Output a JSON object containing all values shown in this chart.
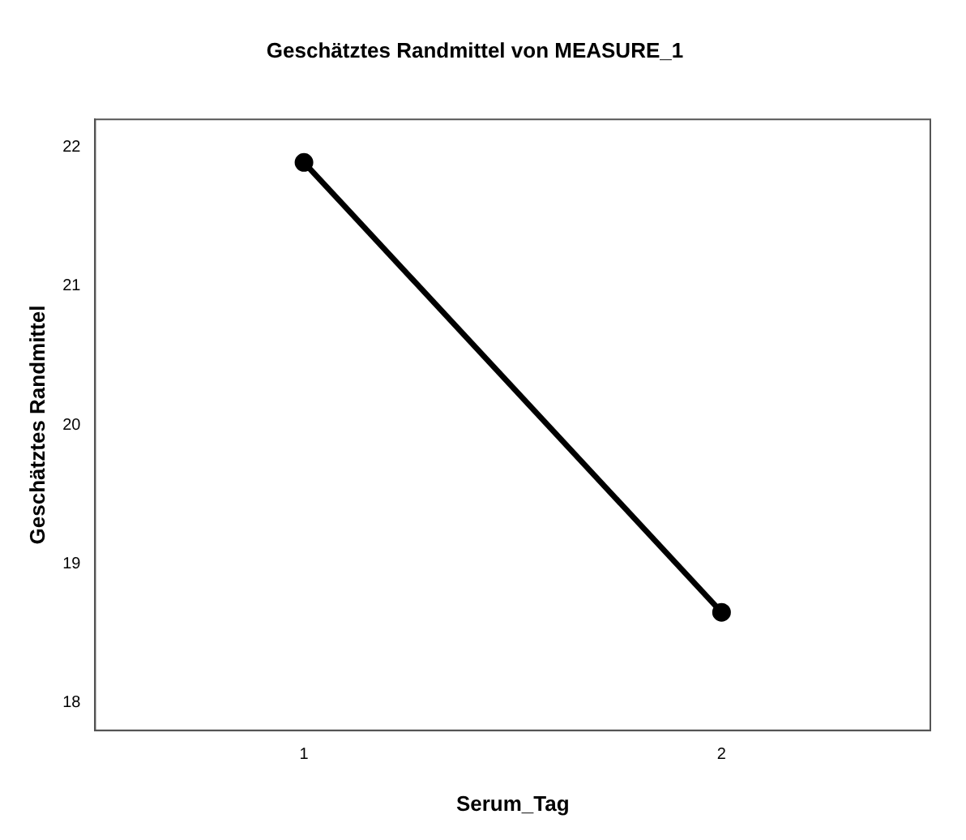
{
  "chart_data": {
    "type": "line",
    "title": "Geschätztes Randmittel von MEASURE_1",
    "xlabel": "Serum_Tag",
    "ylabel": "Geschätztes Randmittel",
    "categories": [
      "1",
      "2"
    ],
    "series": [
      {
        "color": "#000000",
        "values": [
          21.89,
          18.65
        ]
      }
    ],
    "ylim": [
      17.8,
      22.2
    ],
    "yticks": [
      18,
      19,
      20,
      21,
      22
    ],
    "grid": false,
    "legend": false,
    "marker": "circle",
    "line_style": "solid"
  }
}
